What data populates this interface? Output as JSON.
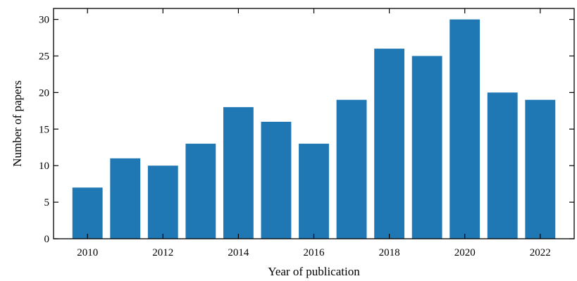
{
  "chart_data": {
    "type": "bar",
    "x": [
      2010,
      2011,
      2012,
      2013,
      2014,
      2015,
      2016,
      2017,
      2018,
      2019,
      2020,
      2021,
      2022
    ],
    "values": [
      7,
      11,
      10,
      13,
      18,
      16,
      13,
      19,
      26,
      25,
      30,
      20,
      19
    ],
    "xlabel": "Year of publication",
    "ylabel": "Number of papers",
    "xticks": [
      "2010",
      "2012",
      "2014",
      "2016",
      "2018",
      "2020",
      "2022"
    ],
    "yticks": [
      "0",
      "5",
      "10",
      "15",
      "20",
      "25",
      "30"
    ],
    "ylim": [
      0,
      31.5
    ],
    "xlim": [
      2009.1,
      2022.9
    ],
    "grid": false,
    "bar_color": "#1f77b4"
  }
}
